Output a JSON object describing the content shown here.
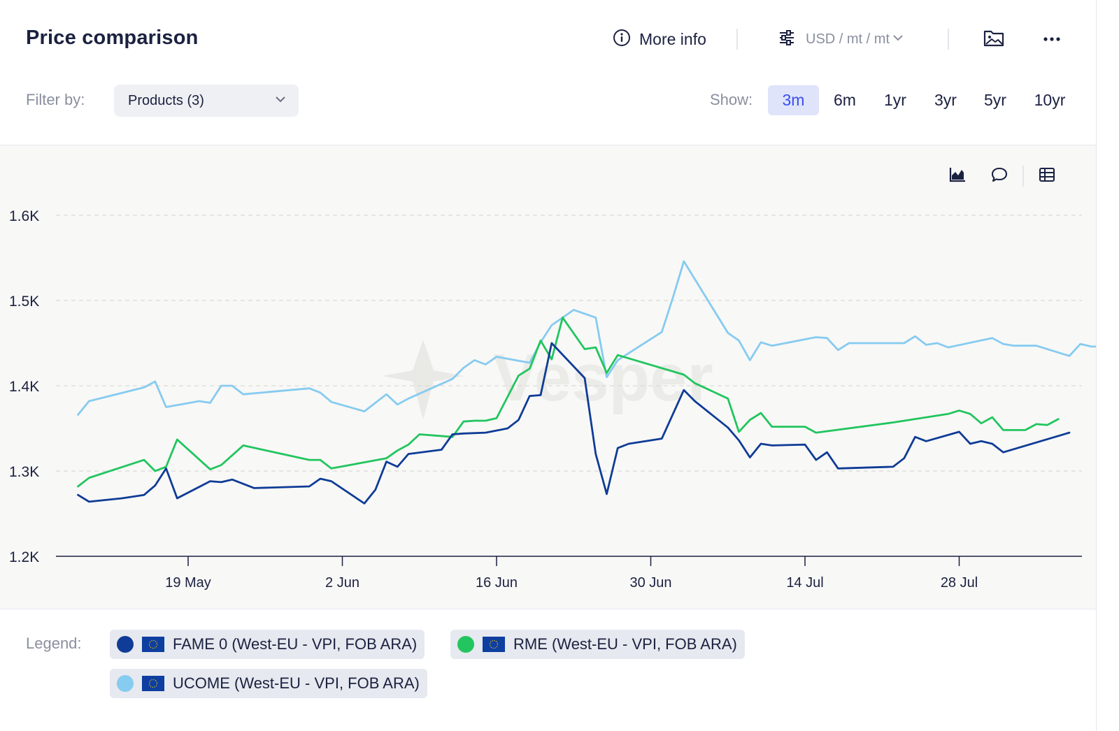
{
  "header": {
    "title": "Price comparison",
    "more_info_label": "More info",
    "units_label": "USD / mt / mt"
  },
  "filter": {
    "label": "Filter by:",
    "value": "Products (3)"
  },
  "show": {
    "label": "Show:",
    "ranges": [
      "3m",
      "6m",
      "1yr",
      "3yr",
      "5yr",
      "10yr"
    ],
    "active": "3m"
  },
  "legend": {
    "label": "Legend:",
    "items": [
      {
        "name": "FAME 0 (West-EU - VPI, FOB ARA)",
        "color": "#0f3c96"
      },
      {
        "name": "RME (West-EU - VPI, FOB ARA)",
        "color": "#22c55e"
      },
      {
        "name": "UCOME (West-EU - VPI, FOB ARA)",
        "color": "#86cbf0"
      }
    ]
  },
  "watermark": "Vesper",
  "colors": {
    "accent": "#3b4ef0",
    "active_bg": "#dfe4fb"
  },
  "icons": [
    "info-icon",
    "sliders-icon",
    "chevron-down-icon",
    "image-folder-icon",
    "more-icon",
    "area-chart-icon",
    "comment-icon",
    "table-icon",
    "eu-flag-icon"
  ],
  "chart_data": {
    "type": "line",
    "x_unit": "days from 11 May",
    "x_ticks": [
      {
        "x": 8,
        "label": "19 May"
      },
      {
        "x": 22,
        "label": "2 Jun"
      },
      {
        "x": 36,
        "label": "16 Jun"
      },
      {
        "x": 50,
        "label": "30 Jun"
      },
      {
        "x": 64,
        "label": "14 Jul"
      },
      {
        "x": 78,
        "label": "28 Jul"
      }
    ],
    "xlim": [
      -3.3,
      88.5
    ],
    "ylim": [
      1200,
      1600
    ],
    "y_ticks": [
      {
        "v": 1200,
        "label": "1.2K"
      },
      {
        "v": 1300,
        "label": "1.3K"
      },
      {
        "v": 1400,
        "label": "1.4K"
      },
      {
        "v": 1500,
        "label": "1.5K"
      },
      {
        "v": 1600,
        "label": "1.6K"
      }
    ],
    "grid": "horizontal-dashed",
    "series": [
      {
        "name": "FAME 0 (West-EU - VPI, FOB ARA)",
        "color": "#0f3c96",
        "points": [
          [
            -2,
            1272
          ],
          [
            -1,
            1264
          ],
          [
            2,
            1268
          ],
          [
            4,
            1272
          ],
          [
            5,
            1283
          ],
          [
            6,
            1303
          ],
          [
            7,
            1268
          ],
          [
            10,
            1288
          ],
          [
            11,
            1287
          ],
          [
            12,
            1290
          ],
          [
            14,
            1280
          ],
          [
            19,
            1282
          ],
          [
            20,
            1291
          ],
          [
            21,
            1288
          ],
          [
            24,
            1262
          ],
          [
            25,
            1278
          ],
          [
            26,
            1311
          ],
          [
            27,
            1305
          ],
          [
            28,
            1320
          ],
          [
            31,
            1325
          ],
          [
            32,
            1343
          ],
          [
            33,
            1344
          ],
          [
            35,
            1345
          ],
          [
            37,
            1350
          ],
          [
            38,
            1360
          ],
          [
            39,
            1388
          ],
          [
            40,
            1389
          ],
          [
            41,
            1450
          ],
          [
            44,
            1409
          ],
          [
            45,
            1320
          ],
          [
            46,
            1273
          ],
          [
            47,
            1327
          ],
          [
            48,
            1332
          ],
          [
            51,
            1338
          ],
          [
            53,
            1395
          ],
          [
            54,
            1382
          ],
          [
            57,
            1351
          ],
          [
            58,
            1336
          ],
          [
            59,
            1316
          ],
          [
            60,
            1332
          ],
          [
            61,
            1330
          ],
          [
            64,
            1331
          ],
          [
            65,
            1313
          ],
          [
            66,
            1322
          ],
          [
            67,
            1303
          ],
          [
            72,
            1305
          ],
          [
            73,
            1315
          ],
          [
            74,
            1340
          ],
          [
            75,
            1335
          ],
          [
            78,
            1346
          ],
          [
            79,
            1332
          ],
          [
            80,
            1335
          ],
          [
            81,
            1332
          ],
          [
            82,
            1322
          ],
          [
            88,
            1345
          ]
        ]
      },
      {
        "name": "RME (West-EU - VPI, FOB ARA)",
        "color": "#22c55e",
        "points": [
          [
            -2,
            1282
          ],
          [
            -1,
            1292
          ],
          [
            4,
            1313
          ],
          [
            5,
            1300
          ],
          [
            6,
            1305
          ],
          [
            7,
            1337
          ],
          [
            10,
            1302
          ],
          [
            11,
            1307
          ],
          [
            13,
            1330
          ],
          [
            19,
            1313
          ],
          [
            20,
            1313
          ],
          [
            21,
            1303
          ],
          [
            26,
            1315
          ],
          [
            27,
            1324
          ],
          [
            28,
            1331
          ],
          [
            29,
            1343
          ],
          [
            32,
            1340
          ],
          [
            33,
            1358
          ],
          [
            34,
            1359
          ],
          [
            35,
            1359
          ],
          [
            36,
            1362
          ],
          [
            38,
            1412
          ],
          [
            39,
            1420
          ],
          [
            40,
            1453
          ],
          [
            41,
            1431
          ],
          [
            42,
            1480
          ],
          [
            44,
            1443
          ],
          [
            45,
            1445
          ],
          [
            46,
            1415
          ],
          [
            47,
            1436
          ],
          [
            53,
            1413
          ],
          [
            54,
            1403
          ],
          [
            57,
            1385
          ],
          [
            58,
            1346
          ],
          [
            59,
            1360
          ],
          [
            60,
            1368
          ],
          [
            61,
            1352
          ],
          [
            63,
            1352
          ],
          [
            64,
            1352
          ],
          [
            65,
            1345
          ],
          [
            72,
            1357
          ],
          [
            77,
            1367
          ],
          [
            78,
            1371
          ],
          [
            79,
            1367
          ],
          [
            80,
            1356
          ],
          [
            81,
            1363
          ],
          [
            82,
            1348
          ],
          [
            84,
            1348
          ],
          [
            85,
            1355
          ],
          [
            86,
            1354
          ],
          [
            87,
            1361
          ]
        ]
      },
      {
        "name": "UCOME (West-EU - VPI, FOB ARA)",
        "color": "#86cbf0",
        "points": [
          [
            -2,
            1366
          ],
          [
            -1,
            1382
          ],
          [
            4,
            1398
          ],
          [
            5,
            1405
          ],
          [
            6,
            1375
          ],
          [
            9,
            1382
          ],
          [
            10,
            1380
          ],
          [
            11,
            1400
          ],
          [
            12,
            1400
          ],
          [
            13,
            1390
          ],
          [
            19,
            1397
          ],
          [
            20,
            1392
          ],
          [
            21,
            1381
          ],
          [
            24,
            1370
          ],
          [
            26,
            1390
          ],
          [
            27,
            1378
          ],
          [
            28,
            1385
          ],
          [
            32,
            1408
          ],
          [
            33,
            1421
          ],
          [
            34,
            1430
          ],
          [
            35,
            1425
          ],
          [
            36,
            1434
          ],
          [
            39,
            1427
          ],
          [
            40,
            1451
          ],
          [
            41,
            1471
          ],
          [
            43,
            1489
          ],
          [
            45,
            1480
          ],
          [
            46,
            1410
          ],
          [
            47,
            1430
          ],
          [
            51,
            1463
          ],
          [
            52,
            1503
          ],
          [
            53,
            1546
          ],
          [
            57,
            1462
          ],
          [
            58,
            1453
          ],
          [
            59,
            1430
          ],
          [
            60,
            1451
          ],
          [
            61,
            1447
          ],
          [
            65,
            1457
          ],
          [
            66,
            1456
          ],
          [
            67,
            1442
          ],
          [
            68,
            1450
          ],
          [
            73,
            1450
          ],
          [
            74,
            1458
          ],
          [
            75,
            1448
          ],
          [
            76,
            1450
          ],
          [
            77,
            1445
          ],
          [
            81,
            1456
          ],
          [
            82,
            1449
          ],
          [
            83,
            1447
          ],
          [
            85,
            1447
          ],
          [
            88,
            1435
          ],
          [
            89,
            1449
          ],
          [
            90,
            1446
          ],
          [
            91,
            1446
          ]
        ]
      }
    ]
  }
}
